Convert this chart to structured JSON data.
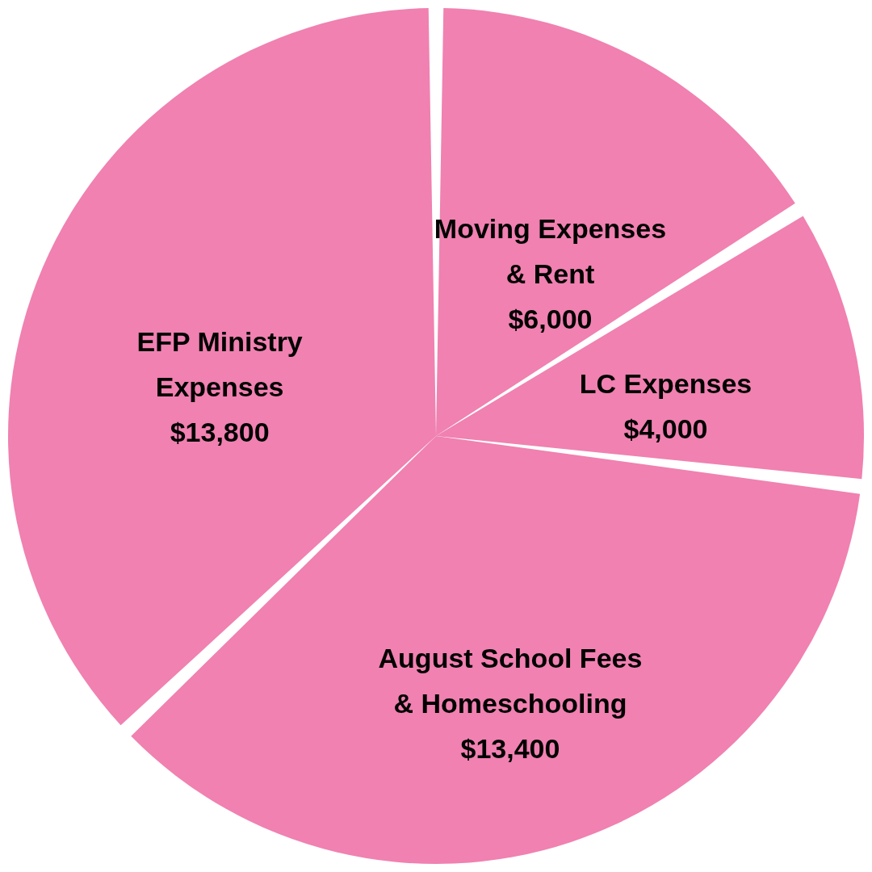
{
  "chart_data": {
    "type": "pie",
    "categories": [
      "Moving Expenses\n& Rent",
      "LC Expenses",
      "August School Fees\n& Homeschooling",
      "EFP Ministry\nExpenses"
    ],
    "values": [
      6000,
      4000,
      13400,
      13800
    ],
    "value_labels": [
      "$6,000",
      "$4,000",
      "$13,400",
      "$13,800"
    ],
    "colors": [
      "#f081b1",
      "#f081b1",
      "#f081b1",
      "#f081b1"
    ],
    "legend": false
  }
}
